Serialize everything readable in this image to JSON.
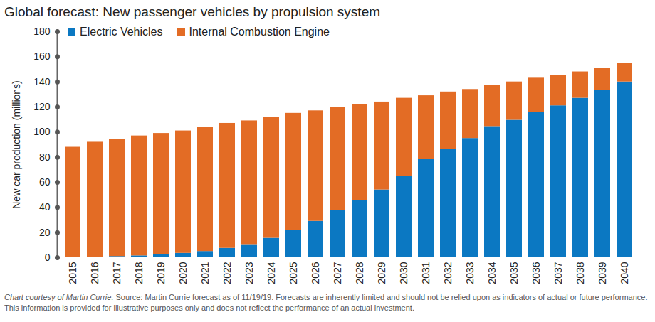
{
  "chart_data": {
    "type": "bar",
    "stacked": true,
    "title": "Global forecast: New passenger vehicles by propulsion system",
    "y_label": "New car production (millions)",
    "caption": "Chart courtesy of Martin Currie.",
    "source": "Source: Martin Currie forecast as of 11/19/19. Forecasts are inherently limited and should not be relied upon as indicators of actual or future performance. This information is provided for illustrative purposes only and does not reflect the performance of an actual investment.",
    "categories": [
      "2015",
      "2016",
      "2017",
      "2018",
      "2019",
      "2020",
      "2021",
      "2022",
      "2023",
      "2024",
      "2025",
      "2026",
      "2027",
      "2028",
      "2029",
      "2030",
      "2031",
      "2032",
      "2033",
      "2034",
      "2035",
      "2036",
      "2037",
      "2038",
      "2039",
      "2040"
    ],
    "series": [
      {
        "name": "Electric Vehicles",
        "color": "#0b78c2",
        "values": [
          0.3,
          0.5,
          1,
          1.5,
          2.3,
          3.5,
          5,
          7.5,
          10.5,
          15.5,
          22,
          29,
          37.5,
          45.5,
          54,
          65,
          78.5,
          86.5,
          95,
          104.5,
          109.5,
          115.5,
          121,
          127,
          133.5,
          140
        ]
      },
      {
        "name": "Internal Combustion Engine",
        "color": "#e36c25",
        "values": [
          87.7,
          91.5,
          93,
          95.5,
          96.7,
          97.5,
          99,
          99.5,
          98.5,
          96.5,
          93,
          88,
          82.5,
          76.5,
          70,
          62,
          50.5,
          45.5,
          39,
          32.5,
          30.5,
          27.5,
          24,
          21,
          17.5,
          15
        ]
      }
    ],
    "ylim": [
      0,
      180
    ],
    "yticks": [
      0,
      20,
      40,
      60,
      80,
      100,
      120,
      140,
      160,
      180
    ],
    "grid": false,
    "legend": "top-left",
    "data_labels": false
  }
}
